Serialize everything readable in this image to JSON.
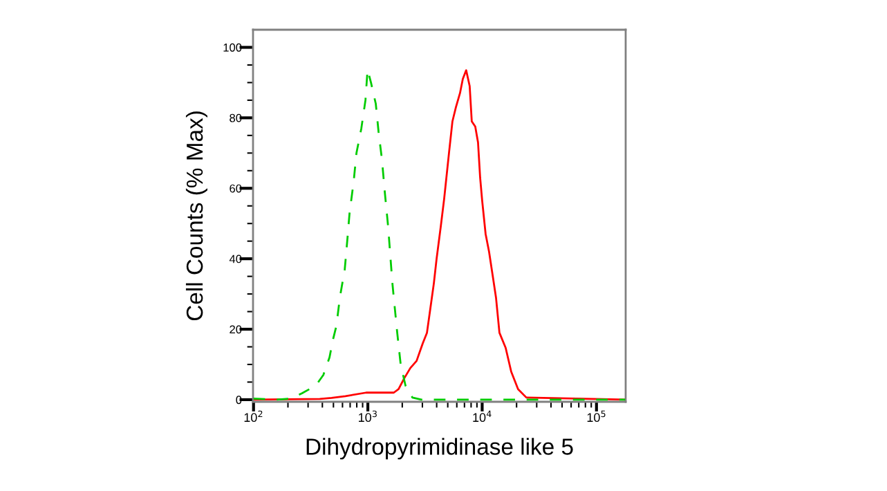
{
  "chart_data": {
    "type": "line",
    "xlabel": "Dihydropyrimidinase like 5",
    "ylabel": "Cell Counts (% Max)",
    "log": "x",
    "xlim": [
      99,
      180000
    ],
    "ylim": [
      -0.6,
      105
    ],
    "xticks": [
      {
        "value": 100,
        "label": "10$^{2}$"
      },
      {
        "value": 200,
        "label": null
      },
      {
        "value": 300,
        "label": null
      },
      {
        "value": 400,
        "label": null
      },
      {
        "value": 500,
        "label": null
      },
      {
        "value": 600,
        "label": null
      },
      {
        "value": 700,
        "label": null
      },
      {
        "value": 800,
        "label": null
      },
      {
        "value": 900,
        "label": null
      },
      {
        "value": 1000,
        "label": "10$^{3}$"
      },
      {
        "value": 2000,
        "label": null
      },
      {
        "value": 3000,
        "label": null
      },
      {
        "value": 4000,
        "label": null
      },
      {
        "value": 5000,
        "label": null
      },
      {
        "value": 6000,
        "label": null
      },
      {
        "value": 7000,
        "label": null
      },
      {
        "value": 8000,
        "label": null
      },
      {
        "value": 9000,
        "label": null
      },
      {
        "value": 10000,
        "label": "10$^{4}$"
      },
      {
        "value": 20000,
        "label": null
      },
      {
        "value": 30000,
        "label": null
      },
      {
        "value": 40000,
        "label": null
      },
      {
        "value": 50000,
        "label": null
      },
      {
        "value": 60000,
        "label": null
      },
      {
        "value": 70000,
        "label": null
      },
      {
        "value": 80000,
        "label": null
      },
      {
        "value": 90000,
        "label": null
      },
      {
        "value": 100000,
        "label": "10$^{5}$"
      }
    ],
    "yticks": [
      0,
      {
        "value": 5,
        "label": null
      },
      {
        "value": 10,
        "label": null
      },
      {
        "value": 15,
        "label": null
      },
      20,
      {
        "value": 25,
        "label": null
      },
      {
        "value": 30,
        "label": null
      },
      {
        "value": 35,
        "label": null
      },
      40,
      {
        "value": 45,
        "label": null
      },
      {
        "value": 50,
        "label": null
      },
      {
        "value": 55,
        "label": null
      },
      60,
      {
        "value": 65,
        "label": null
      },
      {
        "value": 70,
        "label": null
      },
      {
        "value": 75,
        "label": null
      },
      80,
      {
        "value": 85,
        "label": null
      },
      {
        "value": 90,
        "label": null
      },
      {
        "value": 95,
        "label": null
      },
      100
    ],
    "grid": false,
    "marker": "none",
    "series": [
      {
        "color": "#00cc00",
        "line_style": "dashed",
        "x": [
          100,
          158,
          209,
          265,
          350,
          408,
          462,
          495,
          531,
          569,
          628,
          664,
          692,
          752,
          795,
          877,
          953,
          994,
          1065,
          1173,
          1241,
          1330,
          1406,
          1506,
          1571,
          1640,
          1709,
          1807,
          1937,
          2134,
          2453,
          2939,
          178000
        ],
        "values": [
          0.3,
          0,
          0.3,
          1.8,
          4,
          7,
          12,
          17,
          21,
          29,
          37,
          46,
          53,
          62,
          70,
          77,
          85,
          93.7,
          90,
          84,
          76,
          68,
          59,
          49,
          41,
          33,
          27,
          19,
          10,
          4,
          0.6,
          0,
          0
        ]
      },
      {
        "color": "#ff0000",
        "line_style": "solid",
        "x": [
          100,
          380,
          482,
          636,
          966,
          1687,
          1857,
          2075,
          2355,
          2669,
          3022,
          3289,
          3525,
          3778,
          3994,
          4338,
          4650,
          5125,
          5495,
          5890,
          6398,
          6770,
          7246,
          7775,
          8110,
          8700,
          9200,
          9600,
          10000,
          10720,
          11490,
          12320,
          13210,
          14160,
          16050,
          17930,
          20610,
          24360,
          178000
        ],
        "values": [
          0,
          0.2,
          0.5,
          1,
          2,
          2,
          3,
          6,
          9,
          11,
          16,
          19,
          26,
          33,
          40,
          49,
          57,
          70,
          79,
          83,
          87,
          91,
          93.5,
          89,
          79,
          77.5,
          73,
          63,
          56.5,
          47,
          42,
          35.5,
          29,
          19,
          14.7,
          8,
          3,
          0.6,
          0
        ]
      }
    ]
  }
}
